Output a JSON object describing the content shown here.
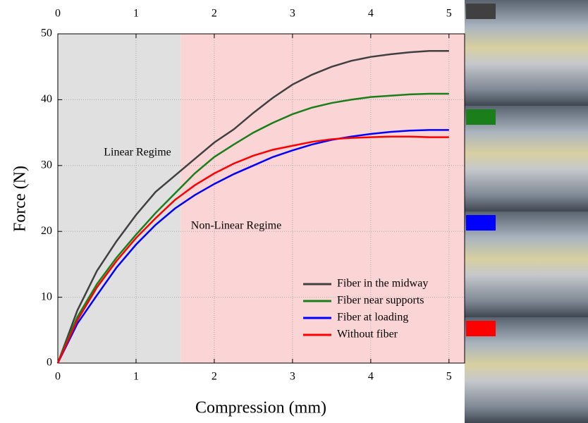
{
  "chart_data": {
    "type": "line",
    "xlabel": "Compression (mm)",
    "ylabel": "Force (N)",
    "xlim": [
      0,
      5.2
    ],
    "ylim": [
      0,
      50
    ],
    "xticks": [
      0,
      1,
      2,
      3,
      4,
      5
    ],
    "yticks": [
      0,
      10,
      20,
      30,
      40,
      50
    ],
    "grid": true,
    "legend": "lower right",
    "shaded_regions": [
      {
        "label": "Linear Regime",
        "x0": 0,
        "x1": 1.57,
        "color": "#e0e0e0"
      },
      {
        "label": "Non-Linear Regime",
        "x0": 1.57,
        "x1": 5.2,
        "color": "#fbd4d6"
      }
    ],
    "x": [
      0,
      0.25,
      0.5,
      0.75,
      1,
      1.25,
      1.5,
      1.75,
      2,
      2.25,
      2.5,
      2.75,
      3,
      3.25,
      3.5,
      3.75,
      4,
      4.25,
      4.5,
      4.75,
      5
    ],
    "series": [
      {
        "name": "Fiber in the midway",
        "color": "#404040",
        "values": [
          0,
          8,
          14,
          18.5,
          22.5,
          26,
          28.5,
          31,
          33.5,
          35.5,
          38,
          40.3,
          42.3,
          43.8,
          45,
          45.9,
          46.5,
          46.9,
          47.2,
          47.4,
          47.4
        ]
      },
      {
        "name": "Fiber near supports",
        "color": "#1a7f1a",
        "values": [
          0,
          7,
          12,
          16,
          19.5,
          22.8,
          25.8,
          28.8,
          31.3,
          33.2,
          35,
          36.5,
          37.8,
          38.8,
          39.5,
          40,
          40.4,
          40.6,
          40.8,
          40.9,
          40.9
        ]
      },
      {
        "name": "Fiber at loading",
        "color": "#0000ff",
        "values": [
          0,
          6,
          10.3,
          14.5,
          18,
          21,
          23.5,
          25.5,
          27.2,
          28.7,
          30,
          31.3,
          32.3,
          33.2,
          33.9,
          34.4,
          34.8,
          35.1,
          35.3,
          35.4,
          35.4
        ]
      },
      {
        "name": "Without fiber",
        "color": "#ff0000",
        "values": [
          0,
          6.5,
          11.5,
          15.5,
          19,
          22,
          24.8,
          27,
          28.8,
          30.3,
          31.5,
          32.4,
          33,
          33.6,
          34,
          34.2,
          34.3,
          34.4,
          34.4,
          34.3,
          34.3
        ]
      }
    ]
  }
}
